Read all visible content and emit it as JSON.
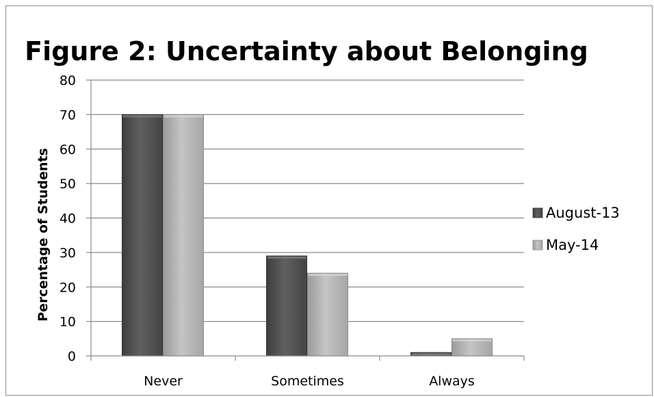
{
  "chart_data": {
    "type": "bar",
    "title": "Figure 2: Uncertainty about Belonging",
    "xlabel": "",
    "ylabel": "Percentage of Students",
    "categories": [
      "Never",
      "Sometimes",
      "Always"
    ],
    "series": [
      {
        "name": "August-13",
        "values": [
          70,
          29,
          1
        ],
        "color": "#5a5a5a"
      },
      {
        "name": "May-14",
        "values": [
          70,
          24,
          5
        ],
        "color": "#b4b4b4"
      }
    ],
    "ylim": [
      0,
      80
    ],
    "yticks": [
      "0",
      "10",
      "20",
      "30",
      "40",
      "50",
      "60",
      "70",
      "80"
    ],
    "grid": true,
    "legend_position": "right"
  }
}
